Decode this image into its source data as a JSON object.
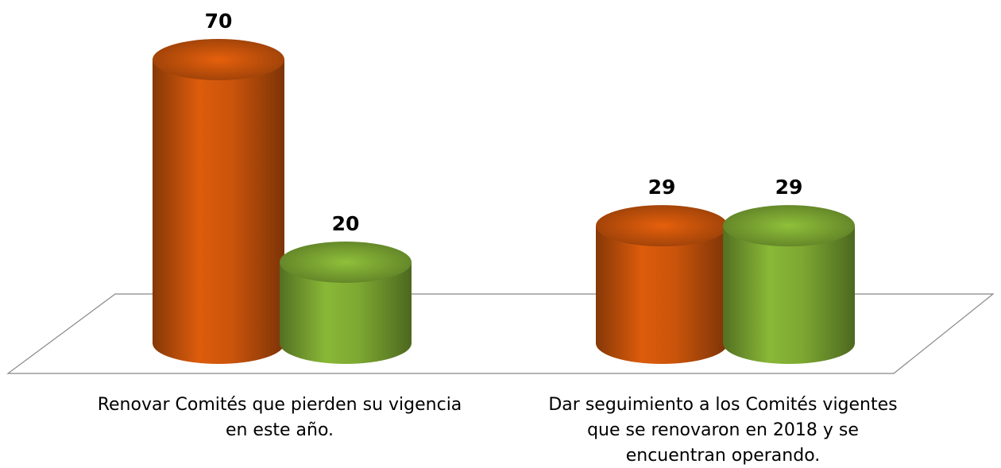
{
  "chart_data": {
    "type": "bar3d",
    "categories": [
      "Renovar Comités que pierden su vigencia en este año.",
      "Dar seguimiento a los Comités vigentes que se renovaron en 2018 y se encuentran operando."
    ],
    "series": [
      {
        "color": "#c0500a",
        "values": [
          70,
          29
        ]
      },
      {
        "color": "#77a030",
        "values": [
          20,
          29
        ]
      }
    ]
  }
}
